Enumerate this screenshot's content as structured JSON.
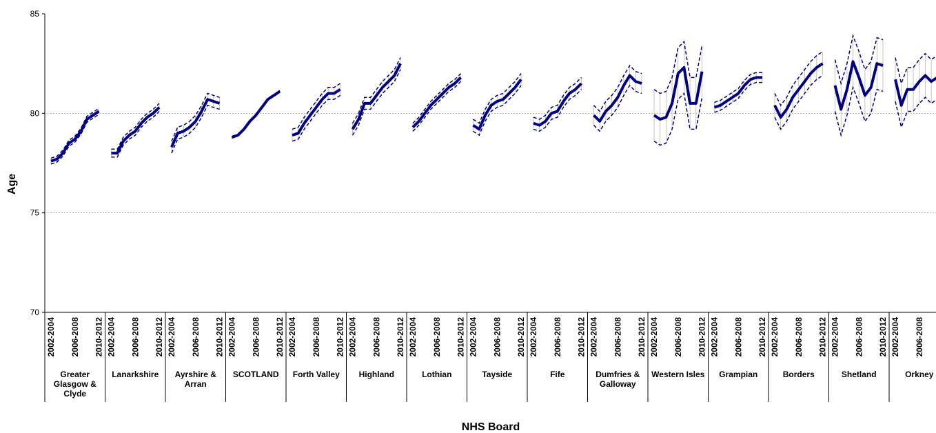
{
  "chart_data": {
    "type": "line",
    "ylabel": "Age",
    "xlabel": "NHS Board",
    "ylim": [
      70,
      85
    ],
    "yticks": [
      70,
      75,
      80,
      85
    ],
    "grid": true,
    "color": "#000080",
    "categories": [
      "2002-2004",
      null,
      null,
      null,
      "2006-2008",
      null,
      null,
      null,
      "2010-2012"
    ],
    "groups": [
      {
        "name": "Greater Glasgow & Clyde",
        "values": [
          77.6,
          77.7,
          78.0,
          78.5,
          78.7,
          79.1,
          79.7,
          79.9,
          80.1
        ],
        "lower": [
          77.45,
          77.55,
          77.85,
          78.35,
          78.55,
          78.95,
          79.55,
          79.75,
          79.95
        ],
        "upper": [
          77.75,
          77.85,
          78.15,
          78.65,
          78.85,
          79.25,
          79.85,
          80.05,
          80.25
        ]
      },
      {
        "name": "Lanarkshire",
        "values": [
          78.0,
          78.0,
          78.6,
          78.9,
          79.1,
          79.5,
          79.8,
          80.0,
          80.3
        ],
        "lower": [
          77.8,
          77.8,
          78.4,
          78.7,
          78.9,
          79.3,
          79.6,
          79.8,
          80.1
        ],
        "upper": [
          78.2,
          78.2,
          78.8,
          79.1,
          79.3,
          79.7,
          80.0,
          80.2,
          80.5
        ]
      },
      {
        "name": "Ayrshire & Arran",
        "values": [
          78.3,
          79.0,
          79.1,
          79.3,
          79.6,
          80.1,
          80.7,
          80.6,
          80.5
        ],
        "lower": [
          78.0,
          78.7,
          78.8,
          79.0,
          79.3,
          79.8,
          80.4,
          80.3,
          80.2
        ],
        "upper": [
          78.6,
          79.3,
          79.4,
          79.6,
          79.9,
          80.4,
          81.0,
          80.9,
          80.8
        ]
      },
      {
        "name": "SCOTLAND",
        "values": [
          78.8,
          78.9,
          79.2,
          79.6,
          79.9,
          80.3,
          80.7,
          80.9,
          81.1
        ],
        "lower": [
          78.75,
          78.85,
          79.15,
          79.55,
          79.85,
          80.25,
          80.65,
          80.85,
          81.05
        ],
        "upper": [
          78.85,
          78.95,
          79.25,
          79.65,
          79.95,
          80.35,
          80.75,
          80.95,
          81.15
        ]
      },
      {
        "name": "Forth Valley",
        "values": [
          78.9,
          79.0,
          79.5,
          79.9,
          80.3,
          80.7,
          81.0,
          81.0,
          81.2
        ],
        "lower": [
          78.6,
          78.7,
          79.2,
          79.6,
          80.0,
          80.4,
          80.7,
          80.7,
          80.9
        ],
        "upper": [
          79.2,
          79.3,
          79.8,
          80.2,
          80.6,
          81.0,
          81.3,
          81.3,
          81.5
        ]
      },
      {
        "name": "Highland",
        "values": [
          79.2,
          79.7,
          80.5,
          80.5,
          80.9,
          81.3,
          81.6,
          81.9,
          82.5
        ],
        "lower": [
          78.9,
          79.4,
          80.2,
          80.2,
          80.6,
          81.0,
          81.3,
          81.6,
          82.2
        ],
        "upper": [
          79.5,
          80.0,
          80.8,
          80.8,
          81.2,
          81.6,
          81.9,
          82.2,
          82.8
        ]
      },
      {
        "name": "Lothian",
        "values": [
          79.3,
          79.6,
          80.0,
          80.4,
          80.7,
          81.0,
          81.3,
          81.5,
          81.8
        ],
        "lower": [
          79.1,
          79.4,
          79.8,
          80.2,
          80.5,
          80.8,
          81.1,
          81.3,
          81.6
        ],
        "upper": [
          79.5,
          79.8,
          80.2,
          80.6,
          80.9,
          81.2,
          81.5,
          81.7,
          82.0
        ]
      },
      {
        "name": "Tayside",
        "values": [
          79.4,
          79.2,
          79.9,
          80.4,
          80.6,
          80.7,
          81.0,
          81.3,
          81.7
        ],
        "lower": [
          79.1,
          78.9,
          79.6,
          80.1,
          80.3,
          80.4,
          80.7,
          81.0,
          81.4
        ],
        "upper": [
          79.7,
          79.5,
          80.2,
          80.7,
          80.9,
          81.0,
          81.3,
          81.6,
          82.0
        ]
      },
      {
        "name": "Fife",
        "values": [
          79.5,
          79.4,
          79.6,
          80.0,
          80.1,
          80.6,
          81.0,
          81.2,
          81.5
        ],
        "lower": [
          79.2,
          79.1,
          79.3,
          79.7,
          79.8,
          80.3,
          80.7,
          80.9,
          81.2
        ],
        "upper": [
          79.8,
          79.7,
          79.9,
          80.3,
          80.4,
          80.9,
          81.3,
          81.5,
          81.8
        ]
      },
      {
        "name": "Dumfries & Galloway",
        "values": [
          79.9,
          79.6,
          80.1,
          80.4,
          80.8,
          81.4,
          81.9,
          81.6,
          81.5
        ],
        "lower": [
          79.4,
          79.1,
          79.6,
          79.9,
          80.3,
          80.9,
          81.4,
          81.1,
          81.0
        ],
        "upper": [
          80.4,
          80.1,
          80.6,
          80.9,
          81.3,
          81.9,
          82.4,
          82.1,
          82.0
        ]
      },
      {
        "name": "Western Isles",
        "values": [
          79.9,
          79.7,
          79.8,
          80.5,
          82.0,
          82.3,
          80.5,
          80.5,
          82.1
        ],
        "lower": [
          78.6,
          78.4,
          78.5,
          79.2,
          80.7,
          81.0,
          79.2,
          79.2,
          80.8
        ],
        "upper": [
          81.2,
          81.0,
          81.1,
          81.8,
          83.3,
          83.6,
          81.8,
          81.8,
          83.4
        ]
      },
      {
        "name": "Grampian",
        "values": [
          80.3,
          80.4,
          80.6,
          80.8,
          81.0,
          81.4,
          81.7,
          81.8,
          81.8
        ],
        "lower": [
          80.05,
          80.15,
          80.35,
          80.55,
          80.75,
          81.15,
          81.45,
          81.55,
          81.55
        ],
        "upper": [
          80.55,
          80.65,
          80.85,
          81.05,
          81.25,
          81.65,
          81.95,
          82.05,
          82.05
        ]
      },
      {
        "name": "Borders",
        "values": [
          80.4,
          79.8,
          80.2,
          80.8,
          81.2,
          81.6,
          82.0,
          82.3,
          82.5
        ],
        "lower": [
          79.8,
          79.2,
          79.6,
          80.2,
          80.6,
          81.0,
          81.4,
          81.7,
          81.9
        ],
        "upper": [
          81.0,
          80.4,
          80.8,
          81.4,
          81.8,
          82.2,
          82.6,
          82.9,
          83.1
        ]
      },
      {
        "name": "Shetland",
        "values": [
          81.4,
          80.2,
          81.2,
          82.6,
          81.8,
          80.9,
          81.3,
          82.5,
          82.4
        ],
        "lower": [
          80.1,
          78.9,
          79.9,
          81.3,
          80.5,
          79.6,
          80.0,
          81.2,
          81.1
        ],
        "upper": [
          82.7,
          81.5,
          82.5,
          83.9,
          83.1,
          82.2,
          82.6,
          83.8,
          83.7
        ]
      },
      {
        "name": "Orkney",
        "values": [
          81.7,
          80.4,
          81.2,
          81.2,
          81.6,
          81.9,
          81.6,
          81.8,
          81.8
        ],
        "lower": [
          80.6,
          79.3,
          80.1,
          80.1,
          80.5,
          80.8,
          80.5,
          80.7,
          80.7
        ],
        "upper": [
          82.8,
          81.5,
          82.3,
          82.3,
          82.7,
          83.0,
          82.7,
          82.9,
          82.9
        ]
      }
    ]
  }
}
